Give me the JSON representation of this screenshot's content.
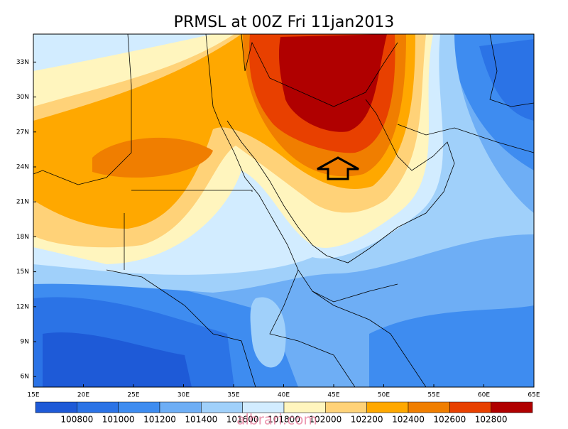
{
  "map": {
    "title": "PRMSL at 00Z Fri 11jan2013",
    "xlim": [
      15,
      65
    ],
    "ylim": [
      5.1,
      35.4
    ],
    "xticks": [
      {
        "value": 15,
        "label": "15E"
      },
      {
        "value": 20,
        "label": "20E"
      },
      {
        "value": 25,
        "label": "25E"
      },
      {
        "value": 30,
        "label": "30E"
      },
      {
        "value": 35,
        "label": "35E"
      },
      {
        "value": 40,
        "label": "40E"
      },
      {
        "value": 45,
        "label": "45E"
      },
      {
        "value": 50,
        "label": "50E"
      },
      {
        "value": 55,
        "label": "55E"
      },
      {
        "value": 60,
        "label": "60E"
      },
      {
        "value": 65,
        "label": "65E"
      }
    ],
    "yticks": [
      {
        "value": 33,
        "label": "33N"
      },
      {
        "value": 30,
        "label": "30N"
      },
      {
        "value": 27,
        "label": "27N"
      },
      {
        "value": 24,
        "label": "24N"
      },
      {
        "value": 21,
        "label": "21N"
      },
      {
        "value": 18,
        "label": "18N"
      },
      {
        "value": 15,
        "label": "15N"
      },
      {
        "value": 12,
        "label": "12N"
      },
      {
        "value": 9,
        "label": "9N"
      },
      {
        "value": 6,
        "label": "6N"
      }
    ],
    "colorbar": {
      "colors": [
        "#1e5ad7",
        "#2b73e6",
        "#3e8cf0",
        "#6eaef5",
        "#a0d0fa",
        "#d2ecff",
        "#fff5be",
        "#ffd278",
        "#ffa800",
        "#f07e00",
        "#e84000",
        "#b00000"
      ],
      "levels": [
        100800,
        101000,
        101200,
        101400,
        101600,
        101800,
        102000,
        102200,
        102400,
        102600,
        102800
      ]
    },
    "watermark": "albrari.com"
  }
}
